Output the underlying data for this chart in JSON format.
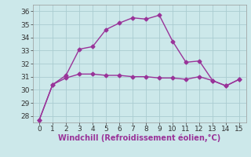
{
  "x": [
    0,
    1,
    2,
    3,
    4,
    5,
    6,
    7,
    8,
    9,
    10,
    11,
    12,
    13,
    14,
    15
  ],
  "line1": [
    27.7,
    30.4,
    31.1,
    33.1,
    33.3,
    34.6,
    35.1,
    35.5,
    35.4,
    35.7,
    33.7,
    32.1,
    32.2,
    30.7,
    30.3,
    30.8
  ],
  "line2": [
    27.7,
    30.4,
    30.9,
    31.2,
    31.2,
    31.1,
    31.1,
    31.0,
    31.0,
    30.9,
    30.9,
    30.8,
    31.0,
    30.7,
    30.3,
    30.8
  ],
  "line_color": "#993399",
  "bg_color": "#cce8ea",
  "grid_color": "#aaccd0",
  "xlabel": "Windchill (Refroidissement éolien,°C)",
  "ylim": [
    27.5,
    36.5
  ],
  "xlim": [
    -0.5,
    15.5
  ],
  "yticks": [
    28,
    29,
    30,
    31,
    32,
    33,
    34,
    35,
    36
  ],
  "xticks": [
    0,
    1,
    2,
    3,
    4,
    5,
    6,
    7,
    8,
    9,
    10,
    11,
    12,
    13,
    14,
    15
  ],
  "marker": "D",
  "markersize": 2.5,
  "linewidth": 1.0,
  "xlabel_fontsize": 7.0,
  "tick_fontsize": 6.5,
  "fig_width": 3.2,
  "fig_height": 2.0
}
